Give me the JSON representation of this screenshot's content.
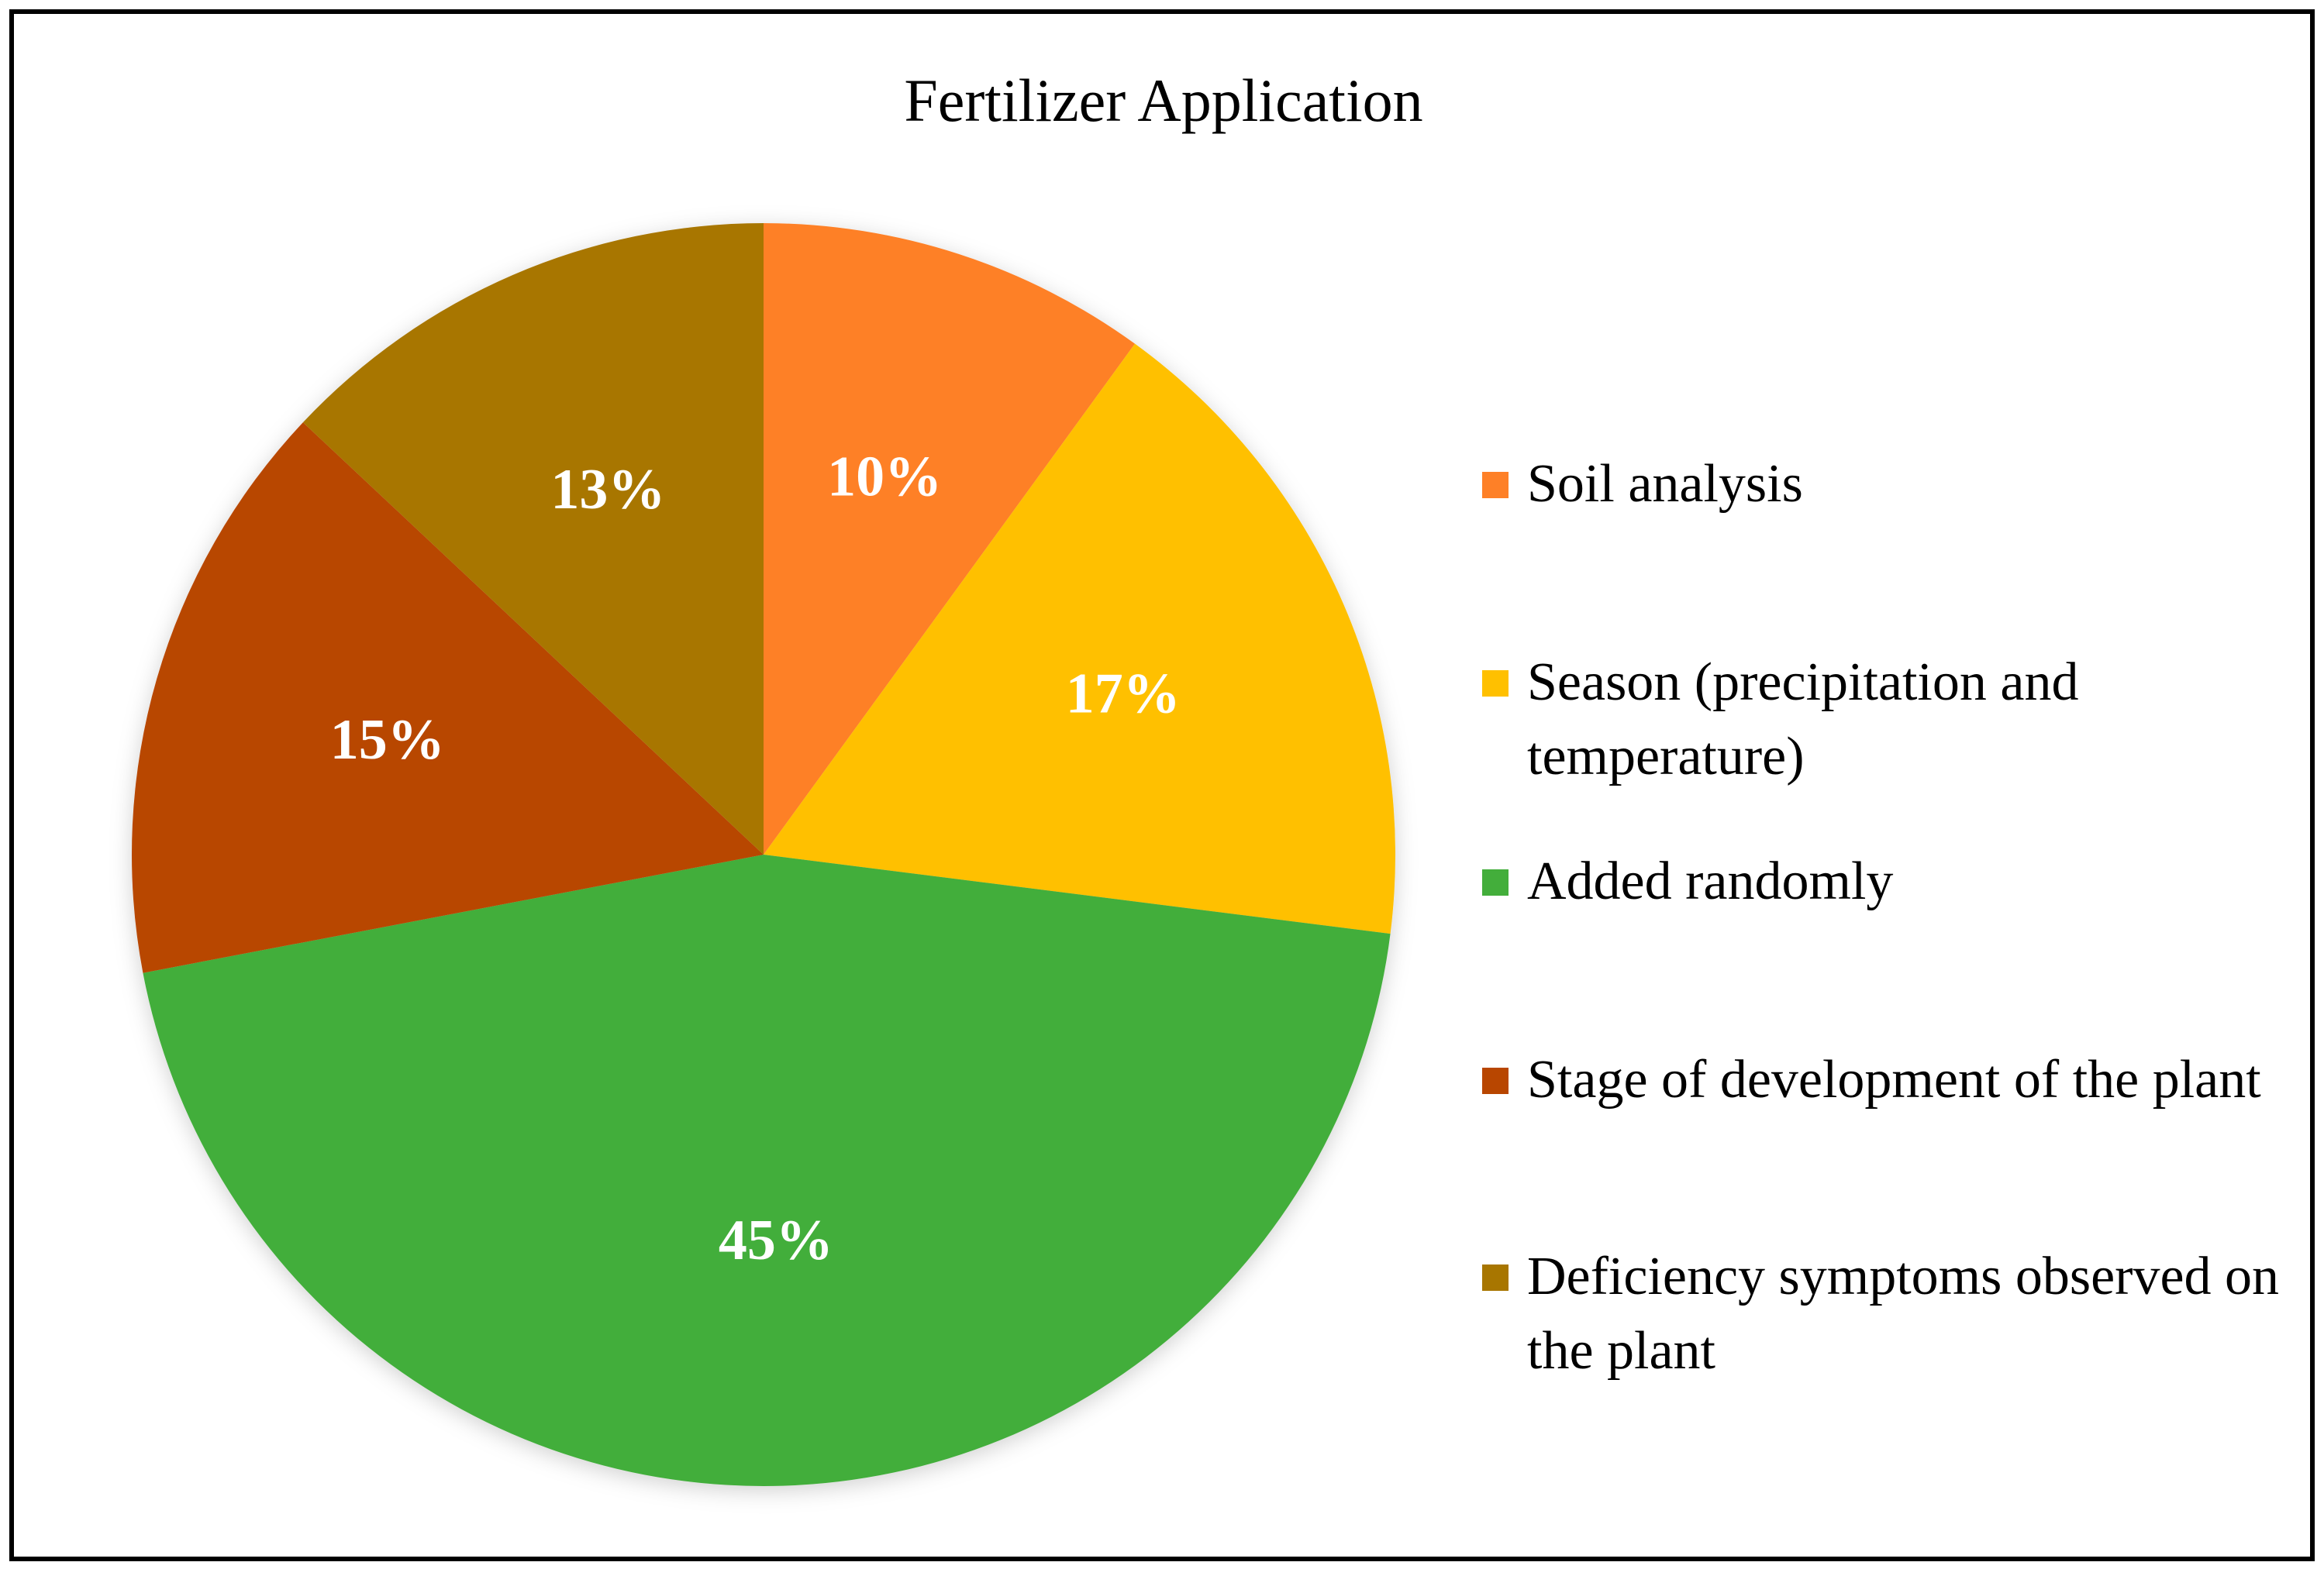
{
  "chart_data": {
    "type": "pie",
    "title": "Fertilizer Application",
    "categories": [
      "Soil analysis",
      "Season (precipitation and temperature)",
      "Added randomly",
      "Stage of development of the plant",
      "Deficiency symptoms observed on the plant"
    ],
    "values": [
      10,
      17,
      45,
      15,
      13
    ],
    "value_labels": [
      "10%",
      "17%",
      "45%",
      "15%",
      "13%"
    ],
    "colors": [
      "#FE8027",
      "#FFC000",
      "#43AE3B",
      "#B84600",
      "#A87600"
    ],
    "legend_position": "right"
  }
}
